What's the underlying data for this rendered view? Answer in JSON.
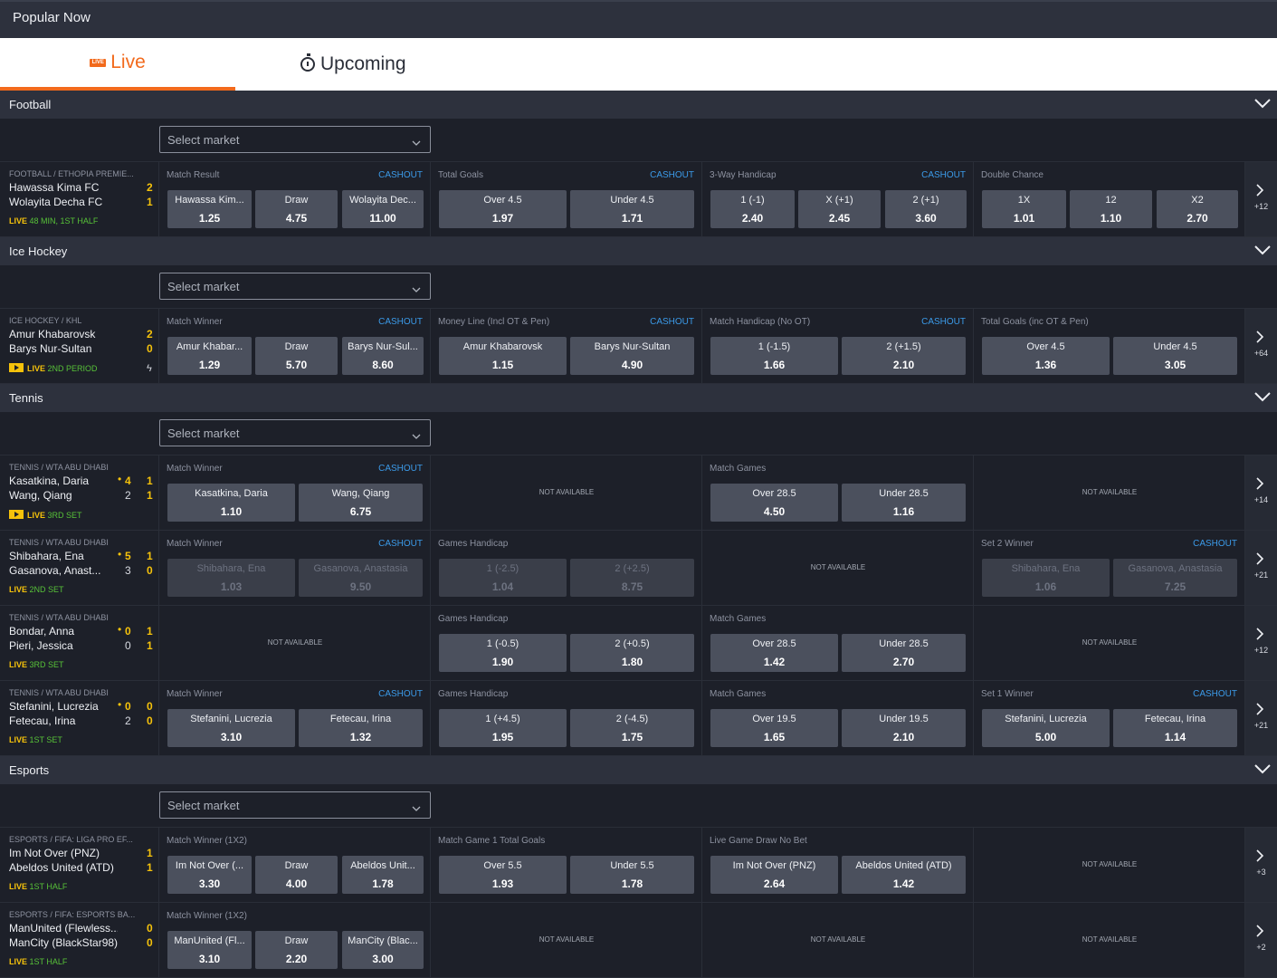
{
  "header": {
    "title": "Popular Now"
  },
  "tabs": {
    "live": "Live",
    "live_icon_text": "LIVE",
    "upcoming": "Upcoming"
  },
  "select_placeholder": "Select market",
  "cashout_label": "CASHOUT",
  "not_available": "NOT AVAILABLE",
  "colors": {
    "accent": "#f26a1c",
    "live_green": "#57c138",
    "score_yellow": "#f5c20b",
    "cashout_blue": "#3b9ae8"
  },
  "sports": [
    {
      "name": "Football",
      "events": [
        {
          "league": "FOOTBALL / ETHOPIA PREMIE...",
          "team1": "Hawassa Kima FC",
          "team2": "Wolayita Decha FC",
          "score1": "2",
          "score2": "1",
          "status_live": "LIVE",
          "status_text": "48 MIN, 1ST HALF",
          "more": "+12",
          "markets": [
            {
              "name": "Match Result",
              "cashout": true,
              "sels": [
                {
                  "l": "Hawassa Kim...",
                  "o": "1.25"
                },
                {
                  "l": "Draw",
                  "o": "4.75"
                },
                {
                  "l": "Wolayita Dec...",
                  "o": "11.00"
                }
              ]
            },
            {
              "name": "Total Goals",
              "cashout": true,
              "sels": [
                {
                  "l": "Over 4.5",
                  "o": "1.97"
                },
                {
                  "l": "Under 4.5",
                  "o": "1.71"
                }
              ]
            },
            {
              "name": "3-Way Handicap",
              "cashout": true,
              "sels": [
                {
                  "l": "1 (-1)",
                  "o": "2.40"
                },
                {
                  "l": "X (+1)",
                  "o": "2.45"
                },
                {
                  "l": "2 (+1)",
                  "o": "3.60"
                }
              ]
            },
            {
              "name": "Double Chance",
              "cashout": false,
              "sels": [
                {
                  "l": "1X",
                  "o": "1.01"
                },
                {
                  "l": "12",
                  "o": "1.10"
                },
                {
                  "l": "X2",
                  "o": "2.70"
                }
              ]
            }
          ]
        }
      ]
    },
    {
      "name": "Ice Hockey",
      "events": [
        {
          "league": "ICE HOCKEY / KHL",
          "team1": "Amur Khabarovsk",
          "team2": "Barys Nur-Sultan",
          "score1": "2",
          "score2": "0",
          "status_live": "LIVE",
          "status_text": "2ND PERIOD",
          "tv": true,
          "bolt": true,
          "more": "+64",
          "markets": [
            {
              "name": "Match Winner",
              "cashout": true,
              "sels": [
                {
                  "l": "Amur Khabar...",
                  "o": "1.29"
                },
                {
                  "l": "Draw",
                  "o": "5.70"
                },
                {
                  "l": "Barys Nur-Sul...",
                  "o": "8.60"
                }
              ]
            },
            {
              "name": "Money Line (Incl OT & Pen)",
              "cashout": true,
              "sels": [
                {
                  "l": "Amur Khabarovsk",
                  "o": "1.15"
                },
                {
                  "l": "Barys Nur-Sultan",
                  "o": "4.90"
                }
              ]
            },
            {
              "name": "Match Handicap (No OT)",
              "cashout": true,
              "sels": [
                {
                  "l": "1 (-1.5)",
                  "o": "1.66"
                },
                {
                  "l": "2 (+1.5)",
                  "o": "2.10"
                }
              ]
            },
            {
              "name": "Total Goals (inc OT & Pen)",
              "cashout": false,
              "sels": [
                {
                  "l": "Over 4.5",
                  "o": "1.36"
                },
                {
                  "l": "Under 4.5",
                  "o": "3.05"
                }
              ]
            }
          ]
        }
      ]
    },
    {
      "name": "Tennis",
      "events": [
        {
          "league": "TENNIS / WTA ABU DHABI",
          "team1": "Kasatkina, Daria",
          "team2": "Wang, Qiang",
          "g1": "4",
          "g2": "2",
          "score1": "1",
          "score2": "1",
          "serve": 1,
          "status_live": "LIVE",
          "status_text": "3RD SET",
          "tv": true,
          "more": "+14",
          "markets": [
            {
              "name": "Match Winner",
              "cashout": true,
              "sels": [
                {
                  "l": "Kasatkina, Daria",
                  "o": "1.10"
                },
                {
                  "l": "Wang, Qiang",
                  "o": "6.75"
                }
              ]
            },
            {
              "na": true
            },
            {
              "name": "Match Games",
              "cashout": false,
              "sels": [
                {
                  "l": "Over 28.5",
                  "o": "4.50"
                },
                {
                  "l": "Under 28.5",
                  "o": "1.16"
                }
              ]
            },
            {
              "na": true
            }
          ]
        },
        {
          "league": "TENNIS / WTA ABU DHABI",
          "team1": "Shibahara, Ena",
          "team2": "Gasanova, Anast...",
          "g1": "5",
          "g2": "3",
          "score1": "1",
          "score2": "0",
          "serve": 1,
          "status_live": "LIVE",
          "status_text": "2ND SET",
          "more": "+21",
          "markets": [
            {
              "name": "Match Winner",
              "cashout": true,
              "dis": true,
              "sels": [
                {
                  "l": "Shibahara, Ena",
                  "o": "1.03"
                },
                {
                  "l": "Gasanova, Anastasia",
                  "o": "9.50"
                }
              ]
            },
            {
              "name": "Games Handicap",
              "cashout": false,
              "dis": true,
              "sels": [
                {
                  "l": "1 (-2.5)",
                  "o": "1.04"
                },
                {
                  "l": "2 (+2.5)",
                  "o": "8.75"
                }
              ]
            },
            {
              "na": true
            },
            {
              "name": "Set 2 Winner",
              "cashout": true,
              "dis": true,
              "sels": [
                {
                  "l": "Shibahara, Ena",
                  "o": "1.06"
                },
                {
                  "l": "Gasanova, Anastasia",
                  "o": "7.25"
                }
              ]
            }
          ]
        },
        {
          "league": "TENNIS / WTA ABU DHABI",
          "team1": "Bondar, Anna",
          "team2": "Pieri, Jessica",
          "g1": "0",
          "g2": "0",
          "score1": "1",
          "score2": "1",
          "serve": 1,
          "status_live": "LIVE",
          "status_text": "3RD SET",
          "more": "+12",
          "markets": [
            {
              "na": true
            },
            {
              "name": "Games Handicap",
              "cashout": false,
              "sels": [
                {
                  "l": "1 (-0.5)",
                  "o": "1.90"
                },
                {
                  "l": "2 (+0.5)",
                  "o": "1.80"
                }
              ]
            },
            {
              "name": "Match Games",
              "cashout": false,
              "sels": [
                {
                  "l": "Over 28.5",
                  "o": "1.42"
                },
                {
                  "l": "Under 28.5",
                  "o": "2.70"
                }
              ]
            },
            {
              "na": true
            }
          ]
        },
        {
          "league": "TENNIS / WTA ABU DHABI",
          "team1": "Stefanini, Lucrezia",
          "team2": "Fetecau, Irina",
          "g1": "0",
          "g2": "2",
          "score1": "0",
          "score2": "0",
          "serve": 1,
          "status_live": "LIVE",
          "status_text": "1ST SET",
          "more": "+21",
          "markets": [
            {
              "name": "Match Winner",
              "cashout": true,
              "sels": [
                {
                  "l": "Stefanini, Lucrezia",
                  "o": "3.10"
                },
                {
                  "l": "Fetecau, Irina",
                  "o": "1.32"
                }
              ]
            },
            {
              "name": "Games Handicap",
              "cashout": false,
              "sels": [
                {
                  "l": "1 (+4.5)",
                  "o": "1.95"
                },
                {
                  "l": "2 (-4.5)",
                  "o": "1.75"
                }
              ]
            },
            {
              "name": "Match Games",
              "cashout": false,
              "sels": [
                {
                  "l": "Over 19.5",
                  "o": "1.65"
                },
                {
                  "l": "Under 19.5",
                  "o": "2.10"
                }
              ]
            },
            {
              "name": "Set 1 Winner",
              "cashout": true,
              "sels": [
                {
                  "l": "Stefanini, Lucrezia",
                  "o": "5.00"
                },
                {
                  "l": "Fetecau, Irina",
                  "o": "1.14"
                }
              ]
            }
          ]
        }
      ]
    },
    {
      "name": "Esports",
      "events": [
        {
          "league": "ESPORTS / FIFA: LIGA PRO EF...",
          "team1": "Im Not Over (PNZ)",
          "team2": "Abeldos United (ATD)",
          "score1": "1",
          "score2": "1",
          "status_live": "LIVE",
          "status_text": "1ST HALF",
          "more": "+3",
          "markets": [
            {
              "name": "Match Winner (1X2)",
              "cashout": false,
              "sels": [
                {
                  "l": "Im Not Over (...",
                  "o": "3.30"
                },
                {
                  "l": "Draw",
                  "o": "4.00"
                },
                {
                  "l": "Abeldos Unit...",
                  "o": "1.78"
                }
              ]
            },
            {
              "name": "Match Game 1 Total Goals",
              "cashout": false,
              "sels": [
                {
                  "l": "Over 5.5",
                  "o": "1.93"
                },
                {
                  "l": "Under 5.5",
                  "o": "1.78"
                }
              ]
            },
            {
              "name": "Live Game Draw No Bet",
              "cashout": false,
              "sels": [
                {
                  "l": "Im Not Over (PNZ)",
                  "o": "2.64"
                },
                {
                  "l": "Abeldos United (ATD)",
                  "o": "1.42"
                }
              ]
            },
            {
              "na": true
            }
          ]
        },
        {
          "league": "ESPORTS / FIFA: ESPORTS BA...",
          "team1": "ManUnited (Flewless...",
          "team2": "ManCity (BlackStar98)",
          "score1": "0",
          "score2": "0",
          "status_live": "LIVE",
          "status_text": "1ST HALF",
          "more": "+2",
          "markets": [
            {
              "name": "Match Winner (1X2)",
              "cashout": false,
              "sels": [
                {
                  "l": "ManUnited (Fl...",
                  "o": "3.10"
                },
                {
                  "l": "Draw",
                  "o": "2.20"
                },
                {
                  "l": "ManCity (Blac...",
                  "o": "3.00"
                }
              ]
            },
            {
              "na": true
            },
            {
              "na": true
            },
            {
              "na": true
            }
          ]
        }
      ]
    }
  ]
}
